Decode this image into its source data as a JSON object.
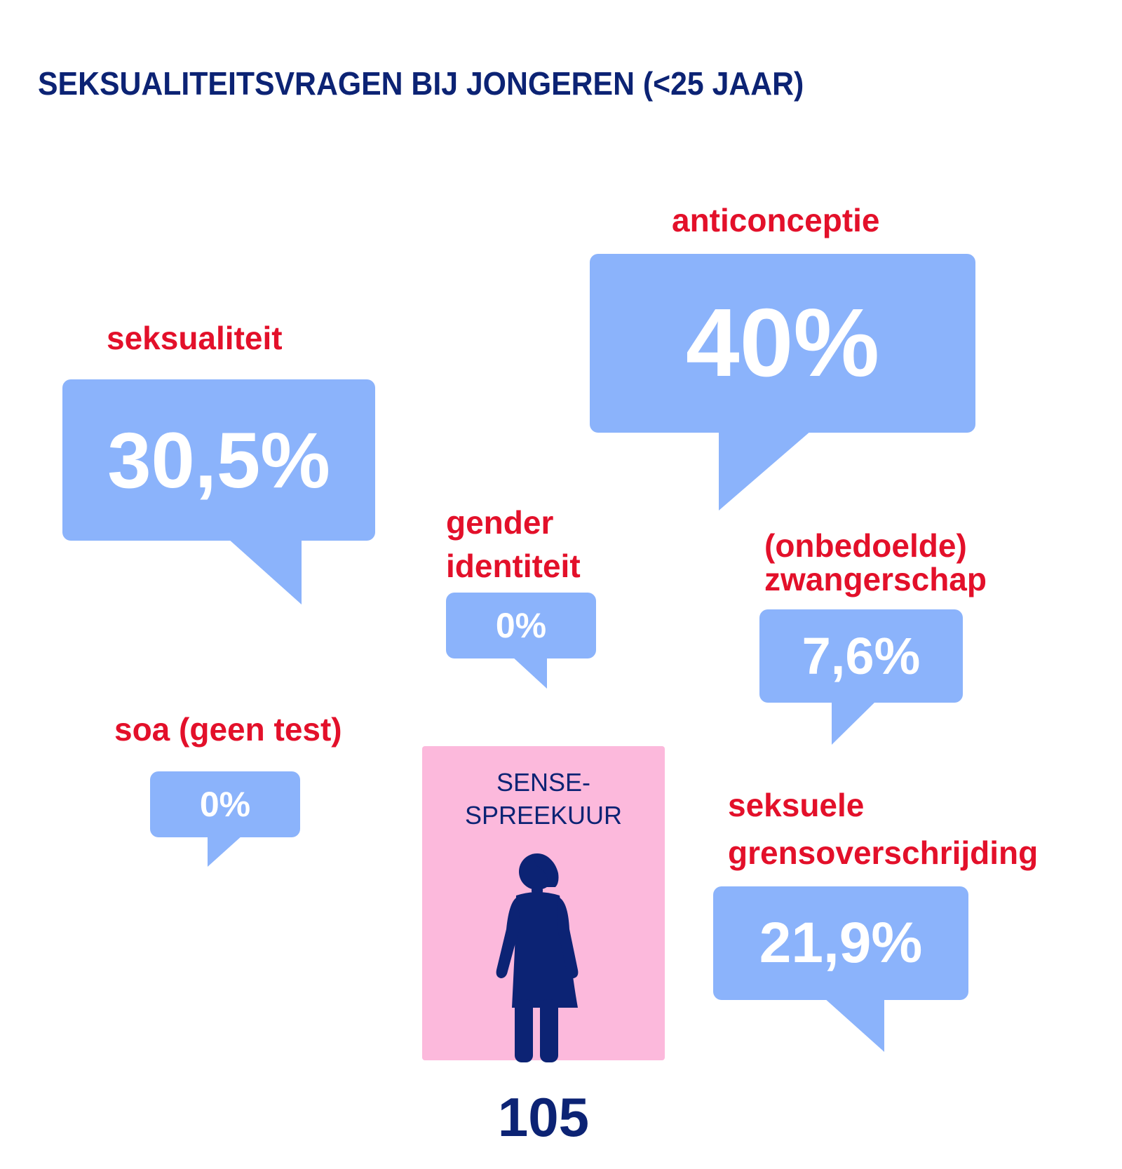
{
  "title": "SEKSUALITEITSVRAGEN BIJ JONGEREN (<25 JAAR)",
  "colors": {
    "title": "#0c2374",
    "label": "#e3102a",
    "bubble": "#8bb3fb",
    "box": "#fcb9dc"
  },
  "chart_data": {
    "type": "table",
    "title": "SEKSUALITEITSVRAGEN BIJ JONGEREN (<25 JAAR)",
    "unit": "%",
    "categories": [
      "seksualiteit",
      "anticonceptie",
      "gender identiteit",
      "(onbedoelde) zwangerschap",
      "soa (geen test)",
      "seksuele grensoverschrijding"
    ],
    "values": [
      30.5,
      40,
      0,
      7.6,
      0,
      21.9
    ],
    "items": [
      {
        "label_lines": [
          "seksualiteit"
        ],
        "value_text": "30,5%"
      },
      {
        "label_lines": [
          "anticonceptie"
        ],
        "value_text": "40%"
      },
      {
        "label_lines": [
          "gender",
          "identiteit"
        ],
        "value_text": "0%"
      },
      {
        "label_lines": [
          "(onbedoelde)",
          "zwangerschap"
        ],
        "value_text": "7,6%"
      },
      {
        "label_lines": [
          "soa (geen test)"
        ],
        "value_text": "0%"
      },
      {
        "label_lines": [
          "seksuele",
          "grensoverschrijding"
        ],
        "value_text": "21,9%"
      }
    ]
  },
  "center": {
    "line1": "SENSE-",
    "line2": "SPREEKUUR",
    "icon": "woman-icon",
    "count": "105"
  }
}
